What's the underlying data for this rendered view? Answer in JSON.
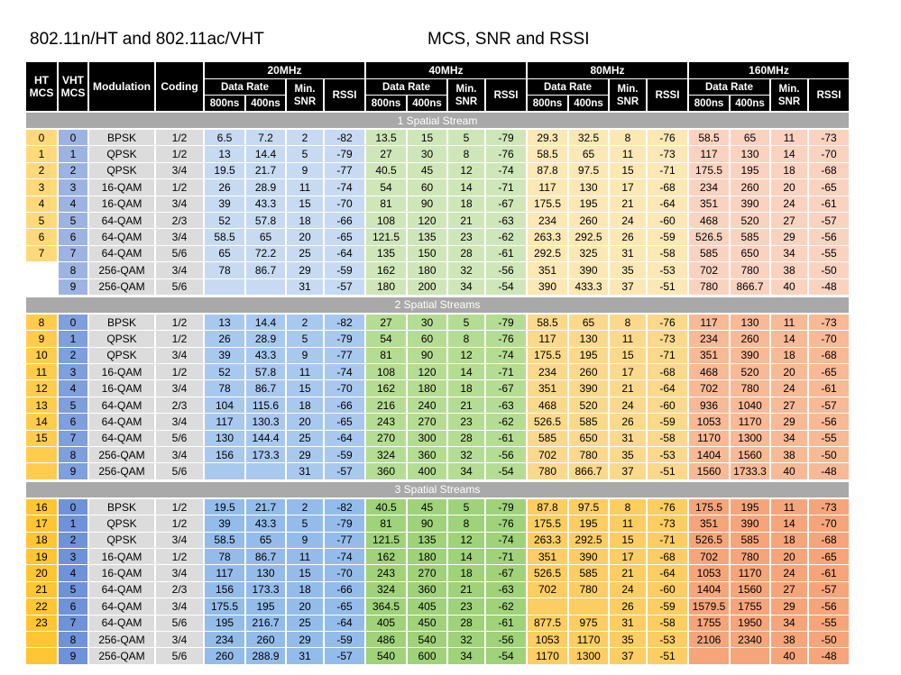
{
  "title_left": "802.11n/HT and 802.11ac/VHT",
  "title_right": "MCS, SNR and RSSI",
  "headers": {
    "ht": "HT",
    "mcs": "MCS",
    "vht": "VHT",
    "modulation": "Modulation",
    "coding": "Coding",
    "data_rate": "Data Rate",
    "min": "Min.",
    "snr": "SNR",
    "rssi": "RSSI",
    "gi_long": "800ns",
    "gi_short": "400ns",
    "bands": [
      "20MHz",
      "40MHz",
      "80MHz",
      "160MHz"
    ]
  },
  "sections": [
    {
      "label": "1 Spatial Stream",
      "rows": [
        [
          "0",
          "0",
          "BPSK",
          "1/2",
          "6.5",
          "7.2",
          "2",
          "-82",
          "13.5",
          "15",
          "5",
          "-79",
          "29.3",
          "32.5",
          "8",
          "-76",
          "58.5",
          "65",
          "11",
          "-73"
        ],
        [
          "1",
          "1",
          "QPSK",
          "1/2",
          "13",
          "14.4",
          "5",
          "-79",
          "27",
          "30",
          "8",
          "-76",
          "58.5",
          "65",
          "11",
          "-73",
          "117",
          "130",
          "14",
          "-70"
        ],
        [
          "2",
          "2",
          "QPSK",
          "3/4",
          "19.5",
          "21.7",
          "9",
          "-77",
          "40.5",
          "45",
          "12",
          "-74",
          "87.8",
          "97.5",
          "15",
          "-71",
          "175.5",
          "195",
          "18",
          "-68"
        ],
        [
          "3",
          "3",
          "16-QAM",
          "1/2",
          "26",
          "28.9",
          "11",
          "-74",
          "54",
          "60",
          "14",
          "-71",
          "117",
          "130",
          "17",
          "-68",
          "234",
          "260",
          "20",
          "-65"
        ],
        [
          "4",
          "4",
          "16-QAM",
          "3/4",
          "39",
          "43.3",
          "15",
          "-70",
          "81",
          "90",
          "18",
          "-67",
          "175.5",
          "195",
          "21",
          "-64",
          "351",
          "390",
          "24",
          "-61"
        ],
        [
          "5",
          "5",
          "64-QAM",
          "2/3",
          "52",
          "57.8",
          "18",
          "-66",
          "108",
          "120",
          "21",
          "-63",
          "234",
          "260",
          "24",
          "-60",
          "468",
          "520",
          "27",
          "-57"
        ],
        [
          "6",
          "6",
          "64-QAM",
          "3/4",
          "58.5",
          "65",
          "20",
          "-65",
          "121.5",
          "135",
          "23",
          "-62",
          "263.3",
          "292.5",
          "26",
          "-59",
          "526.5",
          "585",
          "29",
          "-56"
        ],
        [
          "7",
          "7",
          "64-QAM",
          "5/6",
          "65",
          "72.2",
          "25",
          "-64",
          "135",
          "150",
          "28",
          "-61",
          "292.5",
          "325",
          "31",
          "-58",
          "585",
          "650",
          "34",
          "-55"
        ],
        [
          "",
          "8",
          "256-QAM",
          "3/4",
          "78",
          "86.7",
          "29",
          "-59",
          "162",
          "180",
          "32",
          "-56",
          "351",
          "390",
          "35",
          "-53",
          "702",
          "780",
          "38",
          "-50"
        ],
        [
          "",
          "9",
          "256-QAM",
          "5/6",
          "",
          "",
          "31",
          "-57",
          "180",
          "200",
          "34",
          "-54",
          "390",
          "433.3",
          "37",
          "-51",
          "780",
          "866.7",
          "40",
          "-48"
        ]
      ]
    },
    {
      "label": "2 Spatial Streams",
      "rows": [
        [
          "8",
          "0",
          "BPSK",
          "1/2",
          "13",
          "14.4",
          "2",
          "-82",
          "27",
          "30",
          "5",
          "-79",
          "58.5",
          "65",
          "8",
          "-76",
          "117",
          "130",
          "11",
          "-73"
        ],
        [
          "9",
          "1",
          "QPSK",
          "1/2",
          "26",
          "28.9",
          "5",
          "-79",
          "54",
          "60",
          "8",
          "-76",
          "117",
          "130",
          "11",
          "-73",
          "234",
          "260",
          "14",
          "-70"
        ],
        [
          "10",
          "2",
          "QPSK",
          "3/4",
          "39",
          "43.3",
          "9",
          "-77",
          "81",
          "90",
          "12",
          "-74",
          "175.5",
          "195",
          "15",
          "-71",
          "351",
          "390",
          "18",
          "-68"
        ],
        [
          "11",
          "3",
          "16-QAM",
          "1/2",
          "52",
          "57.8",
          "11",
          "-74",
          "108",
          "120",
          "14",
          "-71",
          "234",
          "260",
          "17",
          "-68",
          "468",
          "520",
          "20",
          "-65"
        ],
        [
          "12",
          "4",
          "16-QAM",
          "3/4",
          "78",
          "86.7",
          "15",
          "-70",
          "162",
          "180",
          "18",
          "-67",
          "351",
          "390",
          "21",
          "-64",
          "702",
          "780",
          "24",
          "-61"
        ],
        [
          "13",
          "5",
          "64-QAM",
          "2/3",
          "104",
          "115.6",
          "18",
          "-66",
          "216",
          "240",
          "21",
          "-63",
          "468",
          "520",
          "24",
          "-60",
          "936",
          "1040",
          "27",
          "-57"
        ],
        [
          "14",
          "6",
          "64-QAM",
          "3/4",
          "117",
          "130.3",
          "20",
          "-65",
          "243",
          "270",
          "23",
          "-62",
          "526.5",
          "585",
          "26",
          "-59",
          "1053",
          "1170",
          "29",
          "-56"
        ],
        [
          "15",
          "7",
          "64-QAM",
          "5/6",
          "130",
          "144.4",
          "25",
          "-64",
          "270",
          "300",
          "28",
          "-61",
          "585",
          "650",
          "31",
          "-58",
          "1170",
          "1300",
          "34",
          "-55"
        ],
        [
          "",
          "8",
          "256-QAM",
          "3/4",
          "156",
          "173.3",
          "29",
          "-59",
          "324",
          "360",
          "32",
          "-56",
          "702",
          "780",
          "35",
          "-53",
          "1404",
          "1560",
          "38",
          "-50"
        ],
        [
          "",
          "9",
          "256-QAM",
          "5/6",
          "",
          "",
          "31",
          "-57",
          "360",
          "400",
          "34",
          "-54",
          "780",
          "866.7",
          "37",
          "-51",
          "1560",
          "1733.3",
          "40",
          "-48"
        ]
      ]
    },
    {
      "label": "3 Spatial Streams",
      "rows": [
        [
          "16",
          "0",
          "BPSK",
          "1/2",
          "19.5",
          "21.7",
          "2",
          "-82",
          "40.5",
          "45",
          "5",
          "-79",
          "87.8",
          "97.5",
          "8",
          "-76",
          "175.5",
          "195",
          "11",
          "-73"
        ],
        [
          "17",
          "1",
          "QPSK",
          "1/2",
          "39",
          "43.3",
          "5",
          "-79",
          "81",
          "90",
          "8",
          "-76",
          "175.5",
          "195",
          "11",
          "-73",
          "351",
          "390",
          "14",
          "-70"
        ],
        [
          "18",
          "2",
          "QPSK",
          "3/4",
          "58.5",
          "65",
          "9",
          "-77",
          "121.5",
          "135",
          "12",
          "-74",
          "263.3",
          "292.5",
          "15",
          "-71",
          "526.5",
          "585",
          "18",
          "-68"
        ],
        [
          "19",
          "3",
          "16-QAM",
          "1/2",
          "78",
          "86.7",
          "11",
          "-74",
          "162",
          "180",
          "14",
          "-71",
          "351",
          "390",
          "17",
          "-68",
          "702",
          "780",
          "20",
          "-65"
        ],
        [
          "20",
          "4",
          "16-QAM",
          "3/4",
          "117",
          "130",
          "15",
          "-70",
          "243",
          "270",
          "18",
          "-67",
          "526.5",
          "585",
          "21",
          "-64",
          "1053",
          "1170",
          "24",
          "-61"
        ],
        [
          "21",
          "5",
          "64-QAM",
          "2/3",
          "156",
          "173.3",
          "18",
          "-66",
          "324",
          "360",
          "21",
          "-63",
          "702",
          "780",
          "24",
          "-60",
          "1404",
          "1560",
          "27",
          "-57"
        ],
        [
          "22",
          "6",
          "64-QAM",
          "3/4",
          "175.5",
          "195",
          "20",
          "-65",
          "364.5",
          "405",
          "23",
          "-62",
          "",
          "",
          "26",
          "-59",
          "1579.5",
          "1755",
          "29",
          "-56"
        ],
        [
          "23",
          "7",
          "64-QAM",
          "5/6",
          "195",
          "216.7",
          "25",
          "-64",
          "405",
          "450",
          "28",
          "-61",
          "877.5",
          "975",
          "31",
          "-58",
          "1755",
          "1950",
          "34",
          "-55"
        ],
        [
          "",
          "8",
          "256-QAM",
          "3/4",
          "234",
          "260",
          "29",
          "-59",
          "486",
          "540",
          "32",
          "-56",
          "1053",
          "1170",
          "35",
          "-53",
          "2106",
          "2340",
          "38",
          "-50"
        ],
        [
          "",
          "9",
          "256-QAM",
          "5/6",
          "260",
          "288.9",
          "31",
          "-57",
          "540",
          "600",
          "34",
          "-54",
          "1170",
          "1300",
          "37",
          "-51",
          "",
          "",
          "40",
          "-48"
        ]
      ]
    }
  ]
}
